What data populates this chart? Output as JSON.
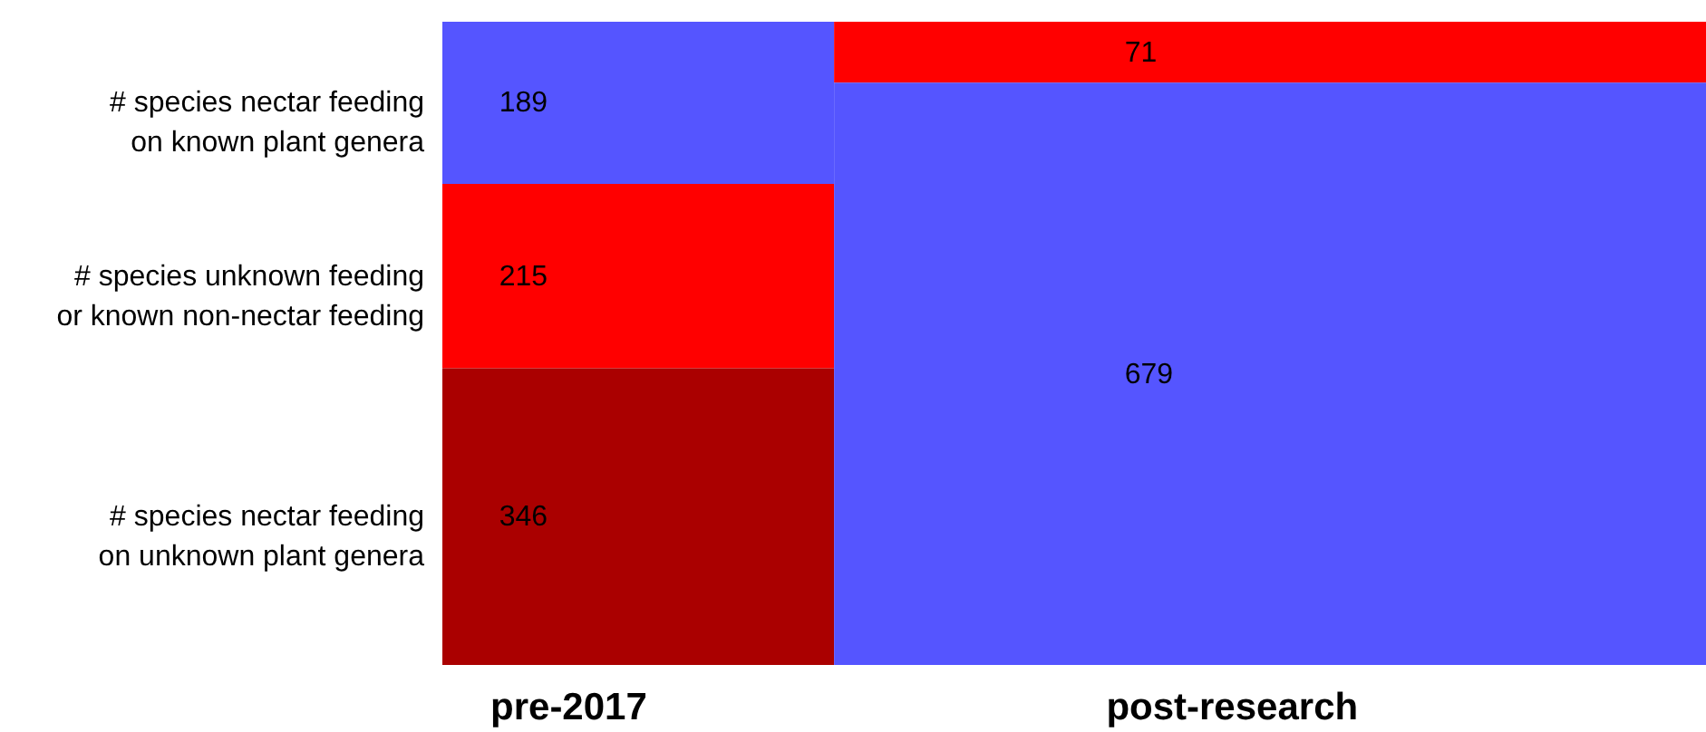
{
  "chart_data": {
    "type": "other",
    "data_labels": true,
    "categories": [
      "pre-2017",
      "post-research"
    ],
    "series": [
      {
        "name": "# species nectar feeding on known plant genera",
        "color": "#5555ff",
        "values": [
          189,
          679
        ]
      },
      {
        "name": "# species unknown feeding or known non-nectar feeding",
        "color": "#ff0000",
        "values": [
          215,
          71
        ]
      },
      {
        "name": "# species nectar feeding on unknown plant genera",
        "color": "#aa0000",
        "values": [
          346,
          null
        ]
      }
    ]
  }
}
